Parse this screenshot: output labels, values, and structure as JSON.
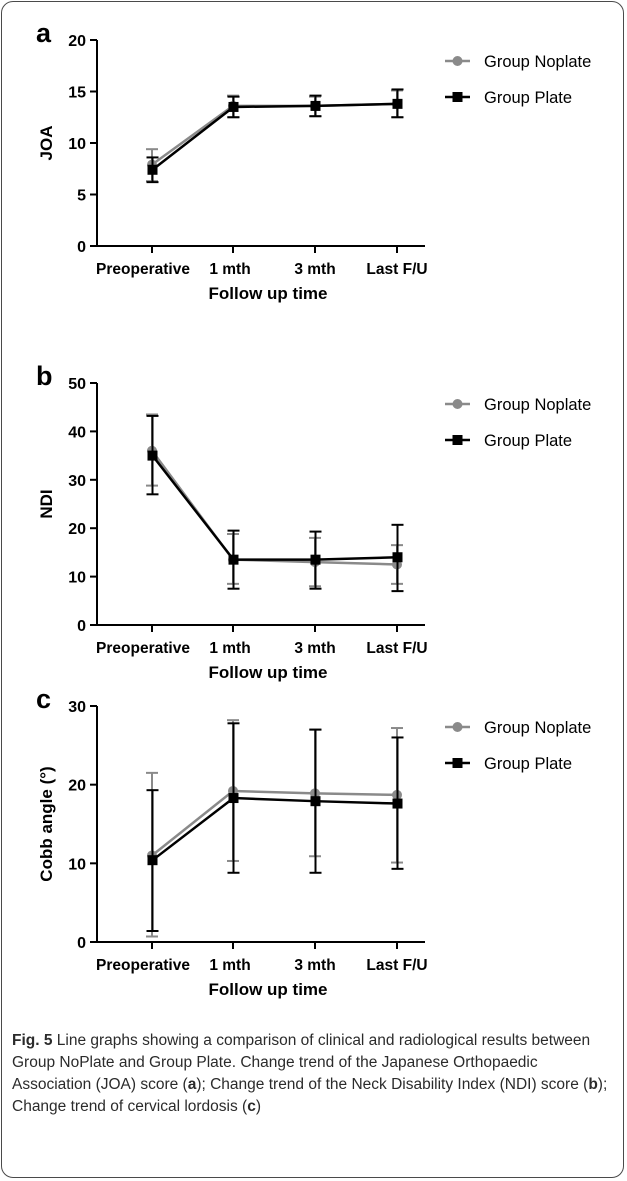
{
  "colors": {
    "noplate": "#8a8a8a",
    "plate": "#000000",
    "axis": "#000000"
  },
  "chart_data": [
    {
      "type": "line",
      "panel_label": "a",
      "title": "",
      "xlabel": "Follow up time",
      "ylabel": "JOA",
      "categories": [
        "Preoperative",
        "1 mth",
        "3 mth",
        "Last F/U"
      ],
      "ylim": [
        0,
        20
      ],
      "yticks": [
        0,
        5,
        10,
        15,
        20
      ],
      "legend": "top-right",
      "grid": false,
      "series": [
        {
          "name": "Group Noplate",
          "marker": "circle",
          "values": [
            7.9,
            13.6,
            13.6,
            13.8
          ],
          "err_low": [
            6.3,
            12.5,
            12.6,
            12.5
          ],
          "err_high": [
            9.4,
            14.6,
            14.5,
            15.1
          ]
        },
        {
          "name": "Group Plate",
          "marker": "square",
          "values": [
            7.4,
            13.5,
            13.6,
            13.8
          ],
          "err_low": [
            6.2,
            12.5,
            12.6,
            12.5
          ],
          "err_high": [
            8.6,
            14.5,
            14.6,
            15.2
          ]
        }
      ]
    },
    {
      "type": "line",
      "panel_label": "b",
      "title": "",
      "xlabel": "Follow up time",
      "ylabel": "NDI",
      "categories": [
        "Preoperative",
        "1 mth",
        "3 mth",
        "Last F/U"
      ],
      "ylim": [
        0,
        50
      ],
      "yticks": [
        0,
        10,
        20,
        30,
        40,
        50
      ],
      "legend": "top-right",
      "grid": false,
      "series": [
        {
          "name": "Group Noplate",
          "marker": "circle",
          "values": [
            36.0,
            13.5,
            13.0,
            12.5
          ],
          "err_low": [
            28.8,
            8.5,
            8.0,
            8.5
          ],
          "err_high": [
            43.5,
            18.8,
            18.0,
            16.5
          ]
        },
        {
          "name": "Group Plate",
          "marker": "square",
          "values": [
            35.0,
            13.5,
            13.5,
            14.0
          ],
          "err_low": [
            27.0,
            7.5,
            7.5,
            7.0
          ],
          "err_high": [
            43.2,
            19.5,
            19.3,
            20.7
          ]
        }
      ]
    },
    {
      "type": "line",
      "panel_label": "c",
      "title": "",
      "xlabel": "Follow up time",
      "ylabel": "Cobb angle (°)",
      "categories": [
        "Preoperative",
        "1 mth",
        "3 mth",
        "Last F/U"
      ],
      "ylim": [
        0,
        30
      ],
      "yticks": [
        0,
        10,
        20,
        30
      ],
      "legend": "top-right",
      "grid": false,
      "series": [
        {
          "name": "Group Noplate",
          "marker": "circle",
          "values": [
            11.0,
            19.2,
            18.9,
            18.7
          ],
          "err_low": [
            0.7,
            10.3,
            10.9,
            10.1
          ],
          "err_high": [
            21.5,
            28.2,
            27.0,
            27.2
          ]
        },
        {
          "name": "Group Plate",
          "marker": "square",
          "values": [
            10.4,
            18.3,
            17.9,
            17.6
          ],
          "err_low": [
            1.4,
            8.8,
            8.8,
            9.3
          ],
          "err_high": [
            19.3,
            27.8,
            27.0,
            26.0
          ]
        }
      ]
    }
  ],
  "caption": {
    "fig_label": "Fig. 5",
    "text_1": " Line graphs showing a comparison of clinical and radiological results between Group NoPlate and Group Plate. Change trend of the Japanese Orthopaedic Association (JOA) score (",
    "ref_a": "a",
    "text_2": "); Change trend of the Neck Disability Index (NDI) score (",
    "ref_b": "b",
    "text_3": "); Change trend of cervical lordosis (",
    "ref_c": "c",
    "text_4": ")"
  }
}
